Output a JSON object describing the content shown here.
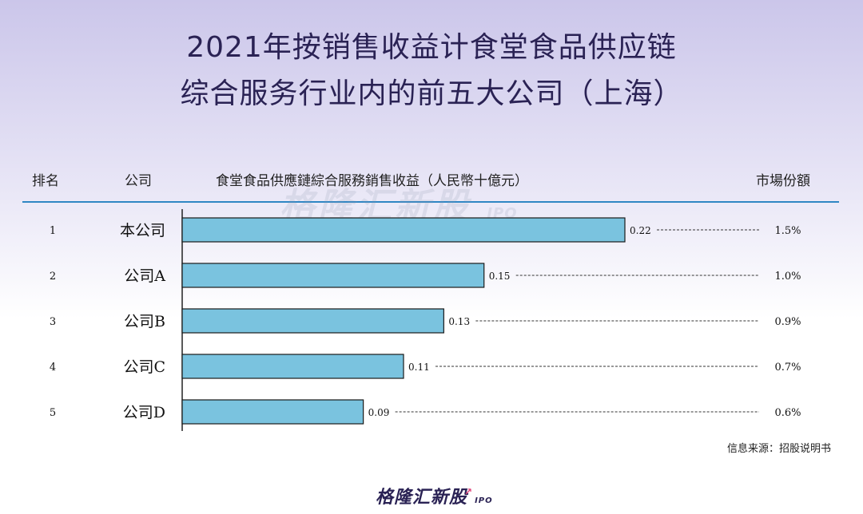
{
  "title_line1": "2021年按销售收益计食堂食品供应链",
  "title_line2": "综合服务行业内的前五大公司（上海）",
  "headers": {
    "rank": "排名",
    "company": "公司",
    "revenue": "食堂食品供應鏈綜合服務銷售收益（人民幣十億元）",
    "share": "市場份額"
  },
  "watermark": {
    "text": "格隆汇新股",
    "ipo": "IPO"
  },
  "chart_data": {
    "type": "bar",
    "orientation": "horizontal",
    "title": "食堂食品供應鏈綜合服務銷售收益（人民幣十億元）",
    "ranks": [
      "1",
      "2",
      "3",
      "4",
      "5"
    ],
    "categories": [
      "本公司",
      "公司A",
      "公司B",
      "公司C",
      "公司D"
    ],
    "values": [
      0.22,
      0.15,
      0.13,
      0.11,
      0.09
    ],
    "value_labels": [
      "0.22",
      "0.15",
      "0.13",
      "0.11",
      "0.09"
    ],
    "market_share": [
      "1.5%",
      "1.0%",
      "0.9%",
      "0.7%",
      "0.6%"
    ],
    "xlim": [
      0,
      0.22
    ],
    "bar_color": "#7ac3df",
    "bar_edge_color": "#1a1a1a"
  },
  "source": "信息来源：招股说明书",
  "logo": {
    "text": "格隆汇新股",
    "ipo": "IPO",
    "accent": "#e0457b"
  }
}
